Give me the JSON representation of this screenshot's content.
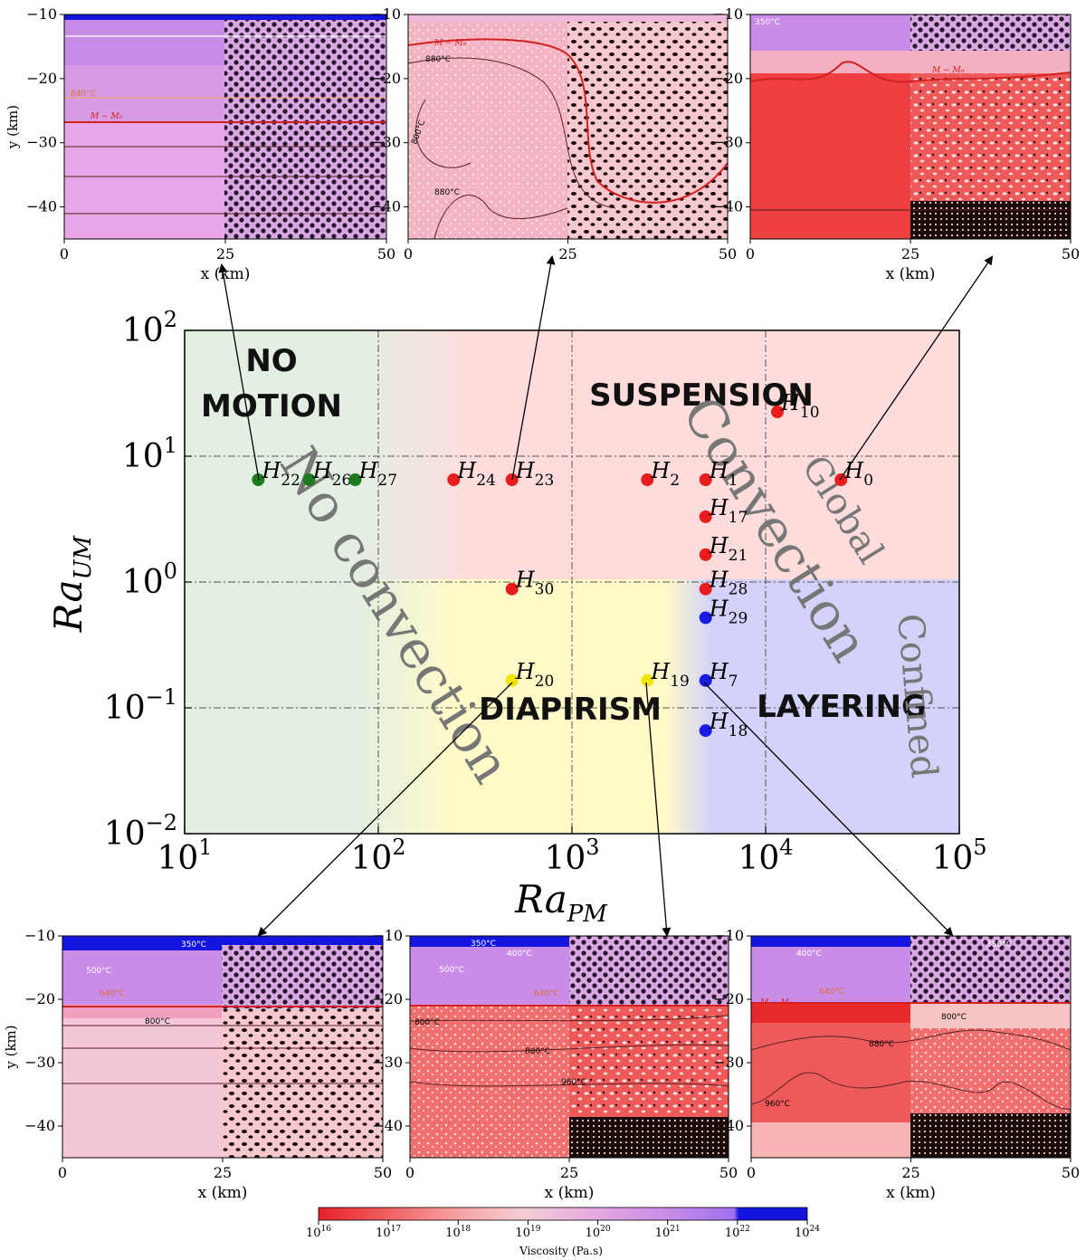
{
  "chart_data": {
    "type": "scatter",
    "xlabel": "Ra",
    "xlabel_sub": "PM",
    "ylabel": "Ra",
    "ylabel_sub": "UM",
    "xscale": "log",
    "yscale": "log",
    "xlim": [
      10,
      100000
    ],
    "ylim": [
      0.01,
      100
    ],
    "grid": true,
    "x_tick_labels": [
      {
        "base": "10",
        "exp": "1",
        "value": 10
      },
      {
        "base": "10",
        "exp": "2",
        "value": 100
      },
      {
        "base": "10",
        "exp": "3",
        "value": 1000
      },
      {
        "base": "10",
        "exp": "4",
        "value": 10000
      },
      {
        "base": "10",
        "exp": "5",
        "value": 100000
      }
    ],
    "y_tick_labels": [
      {
        "base": "10",
        "exp": "−2",
        "value": 0.01
      },
      {
        "base": "10",
        "exp": "−1",
        "value": 0.1
      },
      {
        "base": "10",
        "exp": "0",
        "value": 1
      },
      {
        "base": "10",
        "exp": "1",
        "value": 10
      },
      {
        "base": "10",
        "exp": "2",
        "value": 100
      }
    ],
    "regions": [
      {
        "label": "NO",
        "label2": "MOTION",
        "color": "#e3efe3"
      },
      {
        "label": "SUSPENSION",
        "color": "#ffdcdc"
      },
      {
        "label": "DIAPIRISM",
        "color": "#fffac8"
      },
      {
        "label": "LAYERING",
        "color": "#d2d2fa"
      }
    ],
    "diagonal_labels": [
      {
        "text": "No convection"
      },
      {
        "text": "Convection"
      },
      {
        "text": "Global"
      },
      {
        "text": "Confined"
      }
    ],
    "points": [
      {
        "label": "H",
        "sub": "22",
        "x": 24,
        "y": 6.5,
        "color": "#1e7a1e"
      },
      {
        "label": "H",
        "sub": "26",
        "x": 44,
        "y": 6.5,
        "color": "#1e7a1e"
      },
      {
        "label": "H",
        "sub": "27",
        "x": 76,
        "y": 6.5,
        "color": "#1e7a1e"
      },
      {
        "label": "H",
        "sub": "24",
        "x": 245,
        "y": 6.5,
        "color": "#e81c1c"
      },
      {
        "label": "H",
        "sub": "23",
        "x": 490,
        "y": 6.5,
        "color": "#e81c1c"
      },
      {
        "label": "H",
        "sub": "2",
        "x": 2450,
        "y": 6.5,
        "color": "#e81c1c"
      },
      {
        "label": "H",
        "sub": "1",
        "x": 4900,
        "y": 6.5,
        "color": "#e81c1c"
      },
      {
        "label": "H",
        "sub": "0",
        "x": 24500,
        "y": 6.5,
        "color": "#e81c1c"
      },
      {
        "label": "H",
        "sub": "10",
        "x": 11500,
        "y": 22.5,
        "color": "#e81c1c"
      },
      {
        "label": "H",
        "sub": "17",
        "x": 4900,
        "y": 3.3,
        "color": "#e81c1c"
      },
      {
        "label": "H",
        "sub": "21",
        "x": 4900,
        "y": 1.65,
        "color": "#e81c1c"
      },
      {
        "label": "H",
        "sub": "28",
        "x": 4900,
        "y": 0.88,
        "color": "#e81c1c"
      },
      {
        "label": "H",
        "sub": "30",
        "x": 490,
        "y": 0.88,
        "color": "#e81c1c"
      },
      {
        "label": "H",
        "sub": "29",
        "x": 4900,
        "y": 0.52,
        "color": "#1a1ae6"
      },
      {
        "label": "H",
        "sub": "20",
        "x": 490,
        "y": 0.165,
        "color": "#f2e600"
      },
      {
        "label": "H",
        "sub": "19",
        "x": 2450,
        "y": 0.165,
        "color": "#f2e600"
      },
      {
        "label": "H",
        "sub": "7",
        "x": 4900,
        "y": 0.165,
        "color": "#1a1ae6"
      },
      {
        "label": "H",
        "sub": "18",
        "x": 4900,
        "y": 0.066,
        "color": "#1a1ae6"
      }
    ]
  },
  "panels": {
    "x_ticks": [
      "0",
      "25",
      "50"
    ],
    "y_ticks": [
      "−10",
      "−20",
      "−30",
      "−40"
    ],
    "xlabel": "x (km)",
    "ylabel": "y (km)",
    "top_left": {
      "isotherms": [
        "640°C"
      ],
      "melt": "M − M₀"
    },
    "top_mid": {
      "isotherms": [
        "880°C",
        "800°C",
        "880°C"
      ],
      "melt": "M − M₀"
    },
    "top_right": {
      "isotherms": [
        "350°C"
      ],
      "melt": "M − M₀"
    },
    "bottom_left": {
      "isotherms": [
        "350°C",
        "500°C",
        "640°C",
        "800°C"
      ]
    },
    "bottom_mid": {
      "isotherms": [
        "350°C",
        "400°C",
        "500°C",
        "640°C",
        "800°C",
        "880°C",
        "960°C"
      ]
    },
    "bottom_right": {
      "isotherms": [
        "400°C",
        "350°C",
        "640°C",
        "800°C",
        "880°C",
        "960°C"
      ],
      "melt": "M − M₀"
    }
  },
  "colorbar": {
    "label": "Viscosity (Pa.s)",
    "ticks": [
      {
        "base": "10",
        "exp": "16"
      },
      {
        "base": "10",
        "exp": "17"
      },
      {
        "base": "10",
        "exp": "18"
      },
      {
        "base": "10",
        "exp": "19"
      },
      {
        "base": "10",
        "exp": "20"
      },
      {
        "base": "10",
        "exp": "21"
      },
      {
        "base": "10",
        "exp": "22"
      },
      {
        "base": "10",
        "exp": "24"
      }
    ],
    "colors": [
      "#e8202a",
      "#f06060",
      "#f7a0a0",
      "#f5cdd6",
      "#e4a8e0",
      "#c98de8",
      "#a070ee",
      "#1515e0"
    ]
  }
}
